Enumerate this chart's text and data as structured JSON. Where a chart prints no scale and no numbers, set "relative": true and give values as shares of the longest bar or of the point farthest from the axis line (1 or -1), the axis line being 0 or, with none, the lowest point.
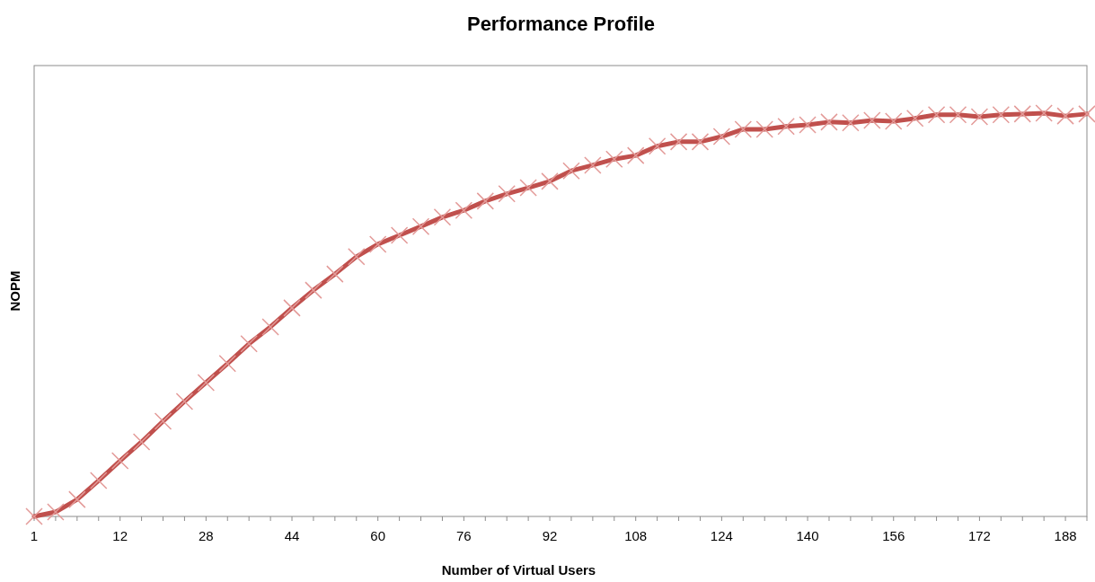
{
  "chart_data": {
    "type": "line",
    "title": "Performance Profile",
    "xlabel": "Number of Virtual Users",
    "ylabel": "NOPM",
    "relative": true,
    "marker": "cross",
    "line_style": "solid",
    "categories": [
      "1",
      null,
      null,
      null,
      "12",
      null,
      null,
      null,
      "28",
      null,
      null,
      null,
      "44",
      null,
      null,
      null,
      "60",
      null,
      null,
      null,
      "76",
      null,
      null,
      null,
      "92",
      null,
      null,
      null,
      "108",
      null,
      null,
      null,
      "124",
      null,
      null,
      null,
      "140",
      null,
      null,
      null,
      "156",
      null,
      null,
      null,
      "172",
      null,
      null,
      null,
      "188",
      null
    ],
    "series": [
      {
        "color": "#c0504d",
        "values": [
          0,
          0.011,
          0.042,
          0.089,
          0.138,
          0.185,
          0.236,
          0.285,
          0.332,
          0.379,
          0.428,
          0.47,
          0.517,
          0.561,
          0.601,
          0.644,
          0.675,
          0.697,
          0.719,
          0.742,
          0.759,
          0.782,
          0.8,
          0.815,
          0.831,
          0.857,
          0.871,
          0.886,
          0.895,
          0.918,
          0.929,
          0.929,
          0.942,
          0.96,
          0.96,
          0.967,
          0.971,
          0.978,
          0.976,
          0.982,
          0.98,
          0.987,
          0.996,
          0.996,
          0.991,
          0.996,
          0.998,
          1,
          0.993,
          0.998
        ]
      }
    ]
  }
}
